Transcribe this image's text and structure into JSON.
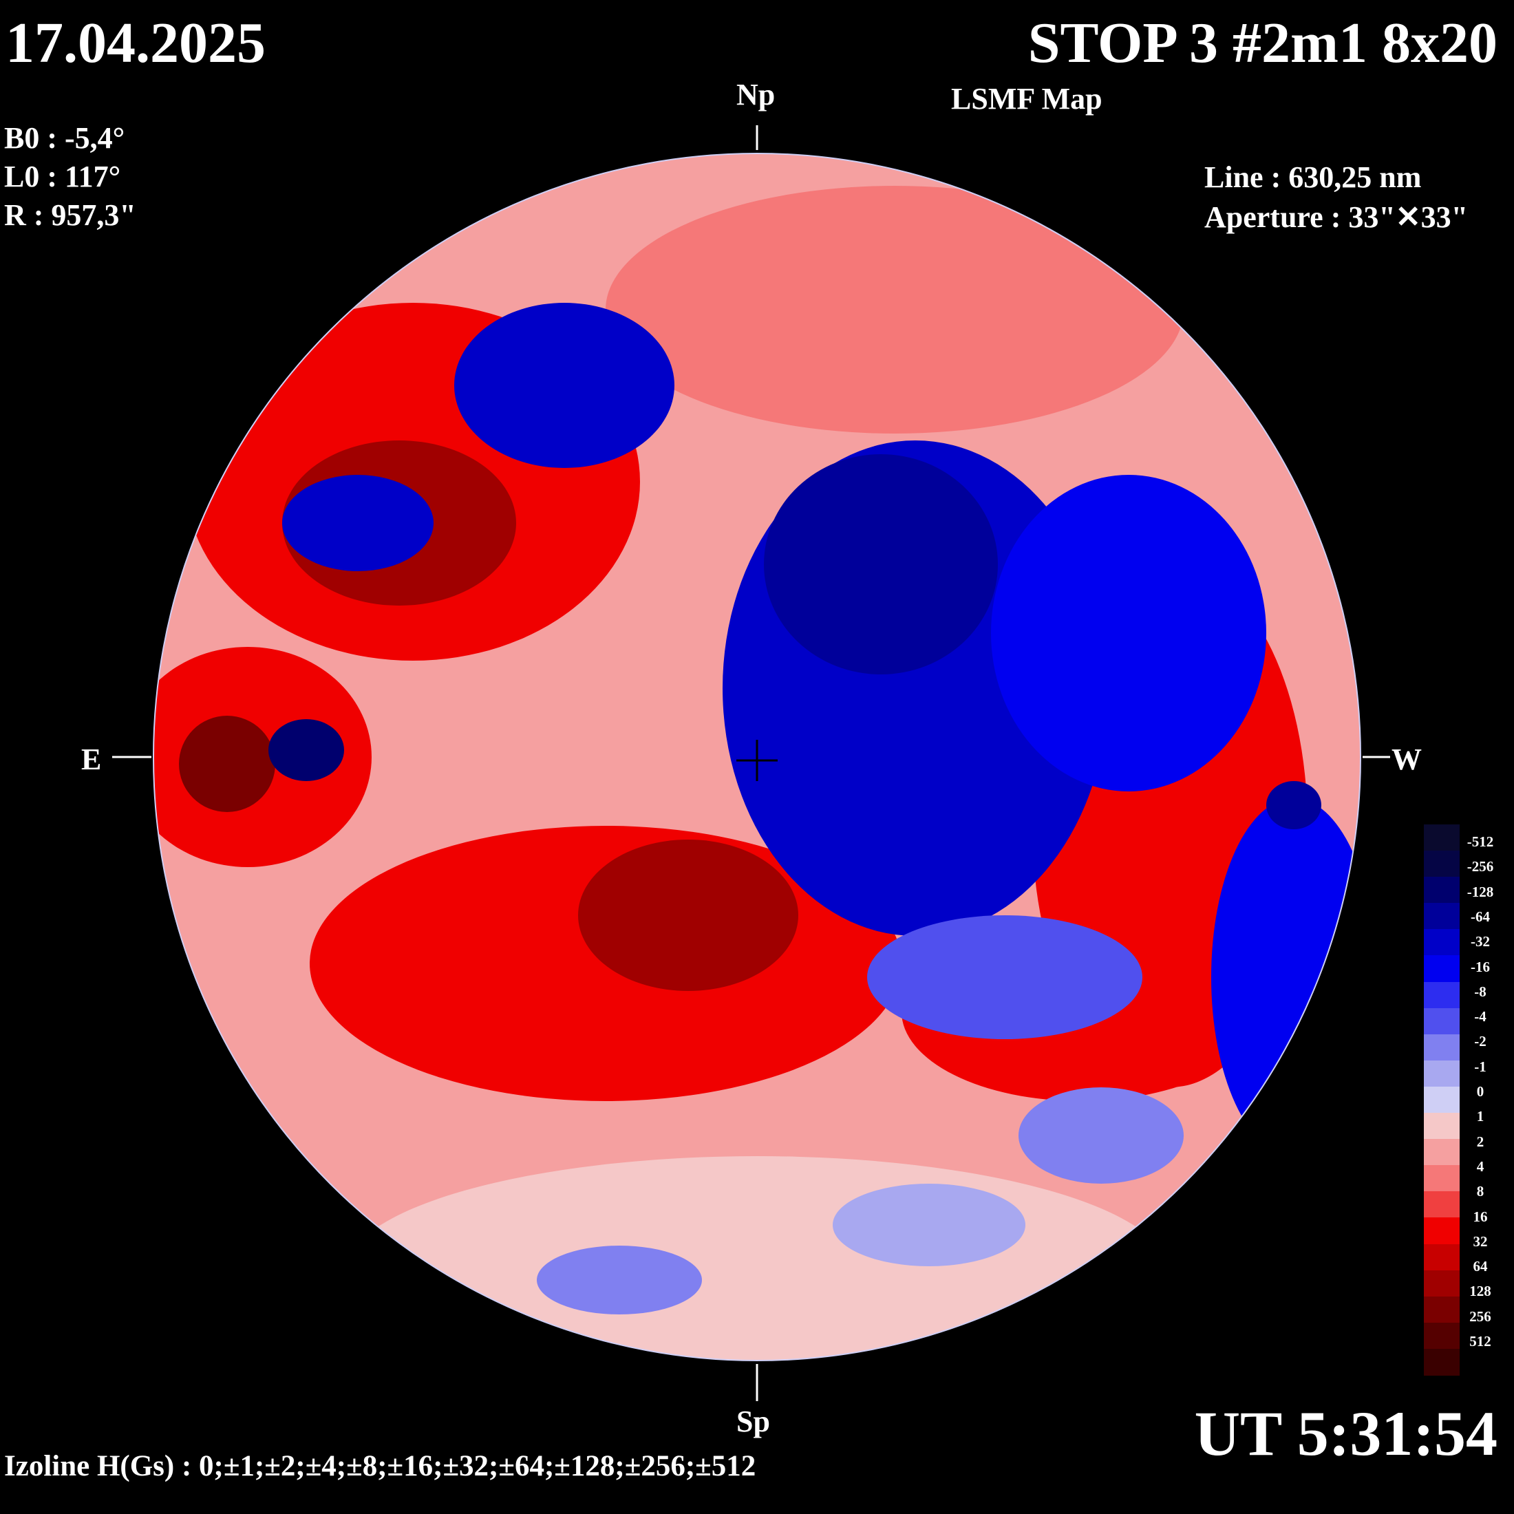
{
  "header": {
    "date": "17.04.2025",
    "title": "STOP 3 #2m1 8x20",
    "subtitle": "LSMF  Map"
  },
  "params": {
    "b0": "B0 : -5,4°",
    "l0": "L0 : 117°",
    "r": "R  : 957,3\"",
    "line": "Line :  630,25 nm",
    "aperture": "Aperture : 33\"✕33\""
  },
  "orientation": {
    "north": "Np",
    "south": "Sp",
    "east": "E",
    "west": "W"
  },
  "time": "UT 5:31:54",
  "izoline": "Izoline H(Gs) : 0;±1;±2;±4;±8;±16;±32;±64;±128;±256;±512",
  "legend": {
    "labels": [
      "-512",
      "-256",
      "-128",
      "-64",
      "-32",
      "-16",
      "-8",
      "-4",
      "-2",
      "-1",
      "0",
      "1",
      "2",
      "4",
      "8",
      "16",
      "32",
      "64",
      "128",
      "256",
      "512"
    ],
    "colors": [
      "#0a0a2e",
      "#050545",
      "#00006e",
      "#00009a",
      "#0000c8",
      "#0000f0",
      "#2d2df0",
      "#5050ee",
      "#8080f0",
      "#a8a8f0",
      "#cfcff5",
      "#f5c8c8",
      "#f5a0a0",
      "#f57878",
      "#f04040",
      "#f00000",
      "#c80000",
      "#a00000",
      "#7a0000",
      "#550000",
      "#3a0000"
    ]
  }
}
